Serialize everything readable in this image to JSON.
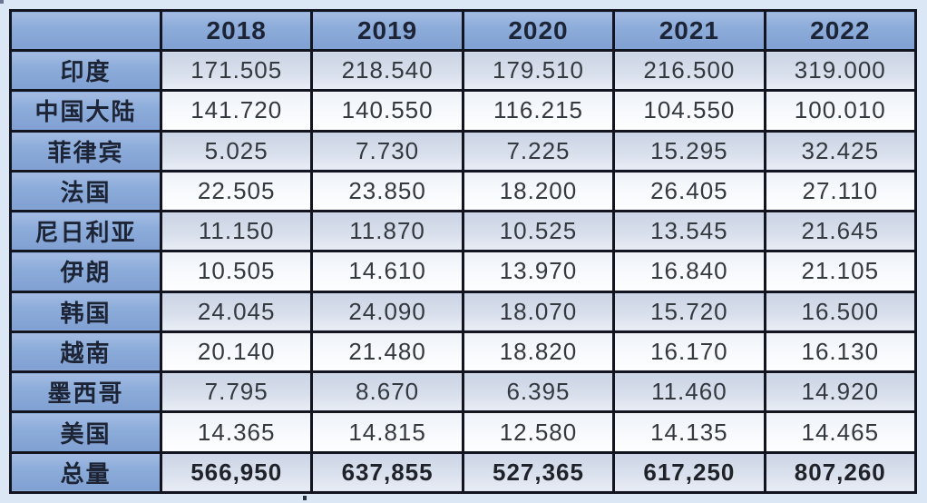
{
  "table": {
    "corner_label": "",
    "columns": [
      "2018",
      "2019",
      "2020",
      "2021",
      "2022"
    ],
    "rows": [
      {
        "label": "印度",
        "values": [
          "171.505",
          "218.540",
          "179.510",
          "216.500",
          "319.000"
        ]
      },
      {
        "label": "中国大陆",
        "values": [
          "141.720",
          "140.550",
          "116.215",
          "104.550",
          "100.010"
        ]
      },
      {
        "label": "菲律宾",
        "values": [
          "5.025",
          "7.730",
          "7.225",
          "15.295",
          "32.425"
        ]
      },
      {
        "label": "法国",
        "values": [
          "22.505",
          "23.850",
          "18.200",
          "26.405",
          "27.110"
        ]
      },
      {
        "label": "尼日利亚",
        "values": [
          "11.150",
          "11.870",
          "10.525",
          "13.545",
          "21.645"
        ]
      },
      {
        "label": "伊朗",
        "values": [
          "10.505",
          "14.610",
          "13.970",
          "16.840",
          "21.105"
        ]
      },
      {
        "label": "韩国",
        "values": [
          "24.045",
          "24.090",
          "18.070",
          "15.720",
          "16.500"
        ]
      },
      {
        "label": "越南",
        "values": [
          "20.140",
          "21.480",
          "18.820",
          "16.170",
          "16.130"
        ]
      },
      {
        "label": "墨西哥",
        "values": [
          "7.795",
          "8.670",
          "6.395",
          "11.460",
          "14.920"
        ]
      },
      {
        "label": "美国",
        "values": [
          "14.365",
          "14.815",
          "12.580",
          "14.135",
          "14.465"
        ]
      },
      {
        "label": "总量",
        "values": [
          "566,950",
          "637,855",
          "527,365",
          "617,250",
          "807,260"
        ]
      }
    ],
    "colors": {
      "page_background": "#dbe7f4",
      "header_blue": "#8babd9",
      "odd_row": "#d3dbe9",
      "even_row": "#f4f7fb",
      "border": "#12141f",
      "header_text": "#1c2436",
      "data_text": "#34383f"
    }
  },
  "chart_data": {
    "type": "table",
    "title": "",
    "categories": [
      "2018",
      "2019",
      "2020",
      "2021",
      "2022"
    ],
    "series": [
      {
        "name": "印度",
        "values": [
          171505,
          218540,
          179510,
          216500,
          319000
        ]
      },
      {
        "name": "中国大陆",
        "values": [
          141720,
          140550,
          116215,
          104550,
          100010
        ]
      },
      {
        "name": "菲律宾",
        "values": [
          5025,
          7730,
          7225,
          15295,
          32425
        ]
      },
      {
        "name": "法国",
        "values": [
          22505,
          23850,
          18200,
          26405,
          27110
        ]
      },
      {
        "name": "尼日利亚",
        "values": [
          11150,
          11870,
          10525,
          13545,
          21645
        ]
      },
      {
        "name": "伊朗",
        "values": [
          10505,
          14610,
          13970,
          16840,
          21105
        ]
      },
      {
        "name": "韩国",
        "values": [
          24045,
          24090,
          18070,
          15720,
          16500
        ]
      },
      {
        "name": "越南",
        "values": [
          20140,
          21480,
          18820,
          16170,
          16130
        ]
      },
      {
        "name": "墨西哥",
        "values": [
          7795,
          8670,
          6395,
          11460,
          14920
        ]
      },
      {
        "name": "美国",
        "values": [
          14365,
          14815,
          12580,
          14135,
          14465
        ]
      },
      {
        "name": "总量",
        "values": [
          566950,
          637855,
          527365,
          617250,
          807260
        ]
      }
    ],
    "layout": {
      "first_column": "country-names",
      "header_row": "years",
      "grid": true
    }
  }
}
